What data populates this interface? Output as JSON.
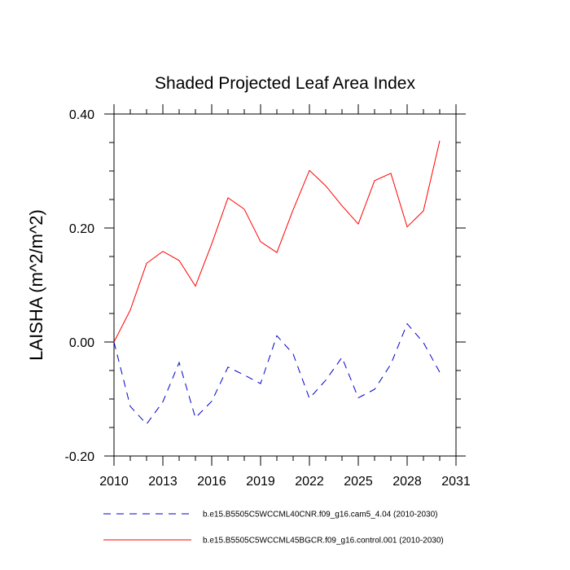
{
  "chart_data": {
    "type": "line",
    "title": "Shaded Projected Leaf Area Index",
    "ylabel": "LAISHA  (m^2/m^2)",
    "xlabel": "",
    "xlim": [
      2010,
      2031
    ],
    "ylim": [
      -0.2,
      0.4
    ],
    "x_ticks": [
      2010,
      2013,
      2016,
      2019,
      2022,
      2025,
      2028,
      2031
    ],
    "x_tick_labels": [
      "2010",
      "2013",
      "2016",
      "2019",
      "2022",
      "2025",
      "2028",
      "2031"
    ],
    "y_ticks": [
      -0.2,
      0.0,
      0.2,
      0.4
    ],
    "y_tick_labels": [
      "-0.20",
      "0.00",
      "0.20",
      "0.40"
    ],
    "grid": false,
    "legend_position": "bottom",
    "x": [
      2010,
      2011,
      2012,
      2013,
      2014,
      2015,
      2016,
      2017,
      2018,
      2019,
      2020,
      2021,
      2022,
      2023,
      2024,
      2025,
      2026,
      2027,
      2028,
      2029,
      2030
    ],
    "series": [
      {
        "name": "b.e15.B5505C5WCCML40CNR.f09_g16.cam5_4.04 (2010-2030)",
        "color": "#0000cc",
        "style": "dashed",
        "values": [
          0.0,
          -0.113,
          -0.144,
          -0.105,
          -0.036,
          -0.133,
          -0.104,
          -0.044,
          -0.058,
          -0.073,
          0.011,
          -0.021,
          -0.099,
          -0.067,
          -0.027,
          -0.098,
          -0.083,
          -0.039,
          0.032,
          -0.001,
          -0.053
        ]
      },
      {
        "name": "b.e15.B5505C5WCCML45BGCR.f09_g16.control.001 (2010-2030)",
        "color": "#ff0000",
        "style": "solid",
        "values": [
          0.0,
          0.056,
          0.138,
          0.159,
          0.143,
          0.098,
          0.172,
          0.253,
          0.233,
          0.176,
          0.157,
          0.232,
          0.301,
          0.274,
          0.239,
          0.207,
          0.283,
          0.296,
          0.202,
          0.23,
          0.353
        ]
      }
    ]
  }
}
